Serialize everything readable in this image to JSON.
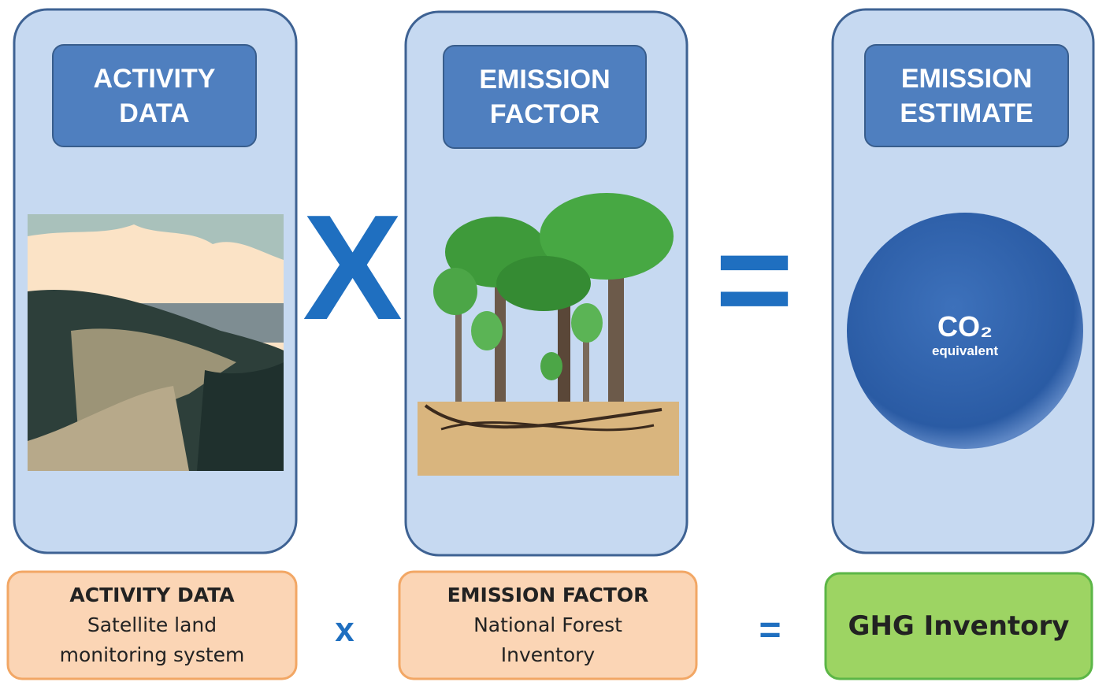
{
  "panels": [
    {
      "title_lines": [
        "ACTIVITY",
        "DATA"
      ]
    },
    {
      "title_lines": [
        "EMISSION",
        "FACTOR"
      ]
    },
    {
      "title_lines": [
        "EMISSION",
        "ESTIMATE"
      ],
      "circle": {
        "formula": "CO₂",
        "caption": "equivalent"
      }
    }
  ],
  "operators": {
    "multiply": "X",
    "equals": "="
  },
  "bottom": {
    "boxes": [
      {
        "title": "ACTIVITY DATA",
        "lines": [
          "Satellite land",
          "monitoring system"
        ]
      },
      {
        "title": "EMISSION FACTOR",
        "lines": [
          "National Forest",
          "Inventory"
        ]
      },
      {
        "title": "GHG Inventory"
      }
    ],
    "operators": {
      "multiply": "x",
      "equals": "="
    }
  }
}
